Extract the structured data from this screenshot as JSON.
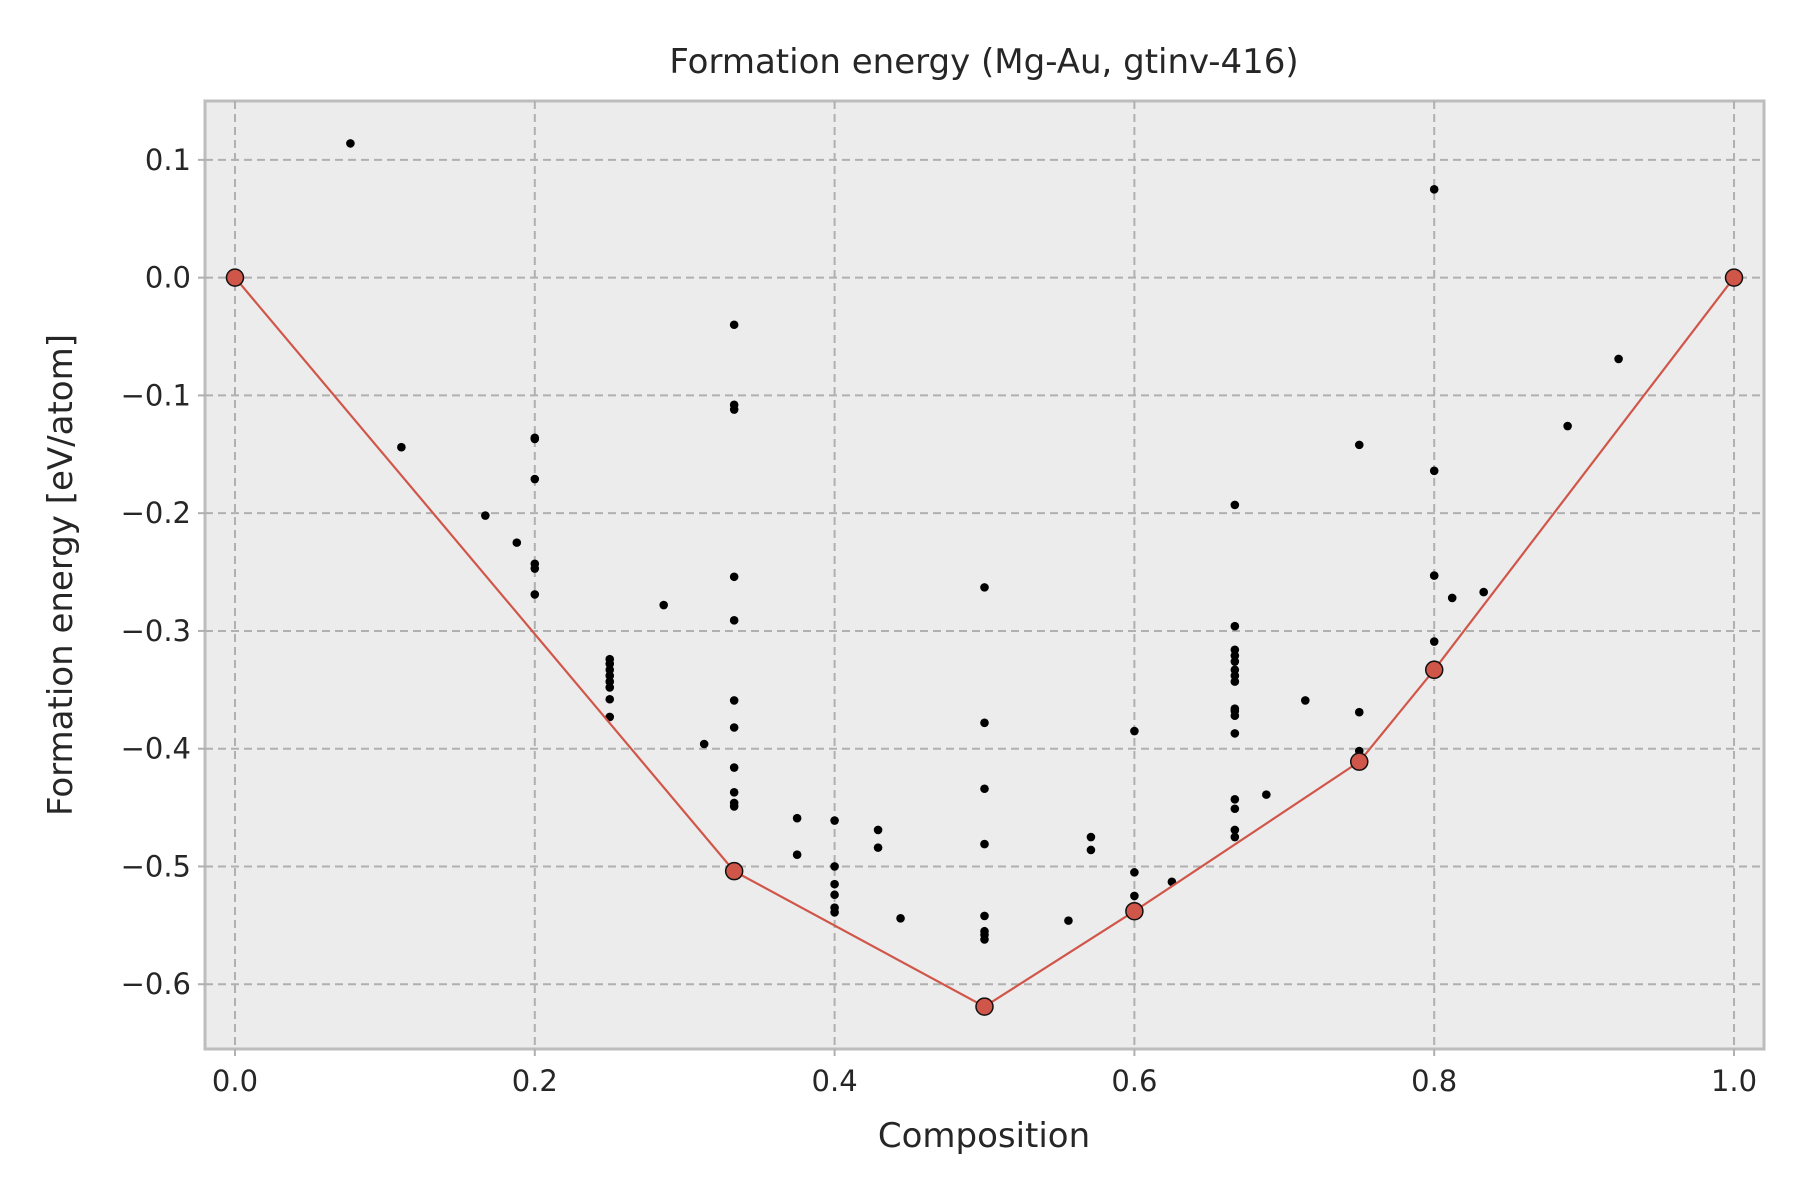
{
  "chart_data": {
    "type": "scatter",
    "title": "Formation energy (Mg-Au, gtinv-416)",
    "xlabel": "Composition",
    "ylabel": "Formation energy [eV/atom]",
    "xlim": [
      -0.02,
      1.02
    ],
    "ylim": [
      -0.655,
      0.15
    ],
    "grid": true,
    "xticks": [
      0.0,
      0.2,
      0.4,
      0.6,
      0.8,
      1.0
    ],
    "xtick_labels": [
      "0.0",
      "0.2",
      "0.4",
      "0.6",
      "0.8",
      "1.0"
    ],
    "yticks": [
      0.1,
      0.0,
      -0.1,
      -0.2,
      -0.3,
      -0.4,
      -0.5,
      -0.6
    ],
    "ytick_labels": [
      "0.1",
      "0.0",
      "−0.1",
      "−0.2",
      "−0.3",
      "−0.4",
      "−0.5",
      "−0.6"
    ],
    "colors": {
      "background": "#ececec",
      "points": "#000000",
      "hull": "#d1564a"
    },
    "series": [
      {
        "kind": "scatter",
        "points": [
          [
            0.077,
            0.114
          ],
          [
            0.111,
            -0.144
          ],
          [
            0.167,
            -0.202
          ],
          [
            0.188,
            -0.225
          ],
          [
            0.2,
            -0.136
          ],
          [
            0.2,
            -0.137
          ],
          [
            0.2,
            -0.171
          ],
          [
            0.2,
            -0.243
          ],
          [
            0.2,
            -0.247
          ],
          [
            0.2,
            -0.269
          ],
          [
            0.25,
            -0.324
          ],
          [
            0.25,
            -0.328
          ],
          [
            0.25,
            -0.333
          ],
          [
            0.25,
            -0.338
          ],
          [
            0.25,
            -0.343
          ],
          [
            0.25,
            -0.348
          ],
          [
            0.25,
            -0.358
          ],
          [
            0.25,
            -0.373
          ],
          [
            0.286,
            -0.278
          ],
          [
            0.313,
            -0.396
          ],
          [
            0.333,
            -0.04
          ],
          [
            0.333,
            -0.108
          ],
          [
            0.333,
            -0.112
          ],
          [
            0.333,
            -0.254
          ],
          [
            0.333,
            -0.291
          ],
          [
            0.333,
            -0.359
          ],
          [
            0.333,
            -0.382
          ],
          [
            0.333,
            -0.416
          ],
          [
            0.333,
            -0.437
          ],
          [
            0.333,
            -0.446
          ],
          [
            0.333,
            -0.449
          ],
          [
            0.375,
            -0.459
          ],
          [
            0.375,
            -0.49
          ],
          [
            0.4,
            -0.461
          ],
          [
            0.4,
            -0.5
          ],
          [
            0.4,
            -0.515
          ],
          [
            0.4,
            -0.524
          ],
          [
            0.4,
            -0.535
          ],
          [
            0.4,
            -0.539
          ],
          [
            0.429,
            -0.469
          ],
          [
            0.429,
            -0.484
          ],
          [
            0.444,
            -0.544
          ],
          [
            0.5,
            -0.263
          ],
          [
            0.5,
            -0.378
          ],
          [
            0.5,
            -0.434
          ],
          [
            0.5,
            -0.481
          ],
          [
            0.5,
            -0.542
          ],
          [
            0.5,
            -0.555
          ],
          [
            0.5,
            -0.558
          ],
          [
            0.5,
            -0.562
          ],
          [
            0.556,
            -0.546
          ],
          [
            0.571,
            -0.475
          ],
          [
            0.571,
            -0.486
          ],
          [
            0.6,
            -0.385
          ],
          [
            0.6,
            -0.505
          ],
          [
            0.6,
            -0.525
          ],
          [
            0.625,
            -0.513
          ],
          [
            0.667,
            -0.193
          ],
          [
            0.667,
            -0.296
          ],
          [
            0.667,
            -0.316
          ],
          [
            0.667,
            -0.321
          ],
          [
            0.667,
            -0.326
          ],
          [
            0.667,
            -0.333
          ],
          [
            0.667,
            -0.338
          ],
          [
            0.667,
            -0.343
          ],
          [
            0.667,
            -0.366
          ],
          [
            0.667,
            -0.368
          ],
          [
            0.667,
            -0.372
          ],
          [
            0.667,
            -0.387
          ],
          [
            0.667,
            -0.443
          ],
          [
            0.667,
            -0.451
          ],
          [
            0.667,
            -0.469
          ],
          [
            0.667,
            -0.475
          ],
          [
            0.688,
            -0.439
          ],
          [
            0.714,
            -0.359
          ],
          [
            0.75,
            -0.142
          ],
          [
            0.75,
            -0.369
          ],
          [
            0.75,
            -0.402
          ],
          [
            0.8,
            0.075
          ],
          [
            0.8,
            -0.164
          ],
          [
            0.8,
            -0.253
          ],
          [
            0.8,
            -0.309
          ],
          [
            0.812,
            -0.272
          ],
          [
            0.833,
            -0.267
          ],
          [
            0.889,
            -0.126
          ],
          [
            0.923,
            -0.069
          ]
        ]
      },
      {
        "kind": "hull",
        "points": [
          [
            0.0,
            0.0
          ],
          [
            0.333,
            -0.504
          ],
          [
            0.5,
            -0.619
          ],
          [
            0.6,
            -0.538
          ],
          [
            0.75,
            -0.411
          ],
          [
            0.8,
            -0.333
          ],
          [
            1.0,
            0.0
          ]
        ]
      }
    ]
  }
}
